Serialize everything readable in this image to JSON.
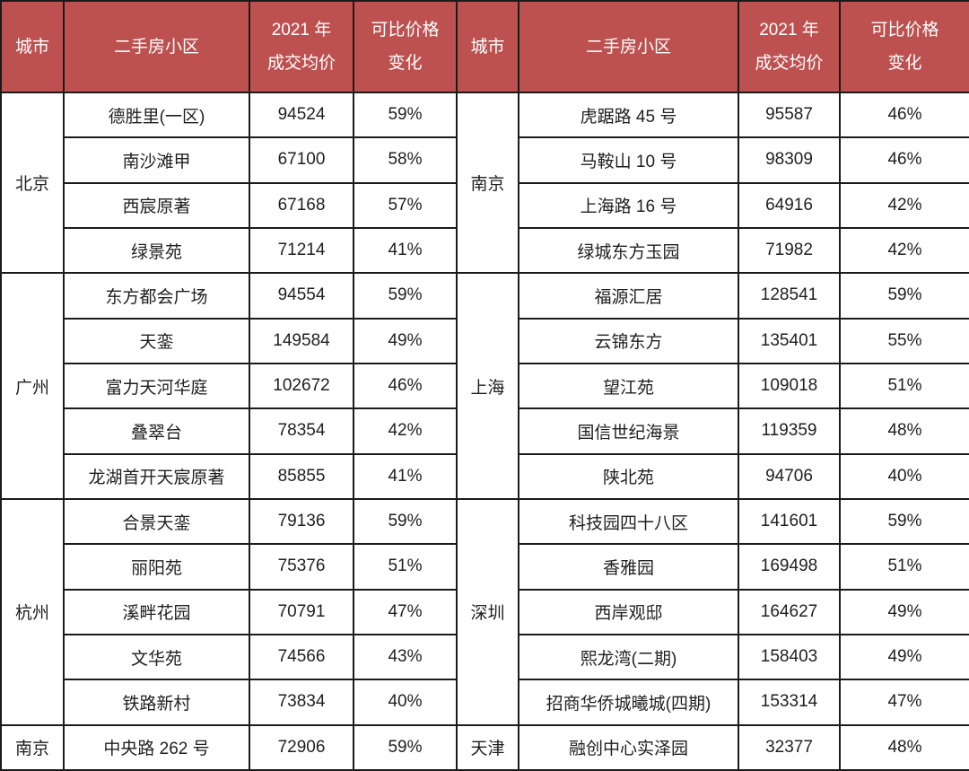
{
  "colors": {
    "header_bg": "#bd5150",
    "header_text": "#ffffff",
    "body_text": "#1f1f1f",
    "border": "#1b1b1b",
    "row_bg": "#ffffff"
  },
  "header": {
    "city": "城市",
    "community": "二手房小区",
    "price_line1": "2021 年",
    "price_line2": "成交均价",
    "change_line1": "可比价格",
    "change_line2": "变化"
  },
  "left_groups": [
    {
      "city": "北京",
      "rows": [
        {
          "community": "德胜里(一区)",
          "price": "94524",
          "change": "59%"
        },
        {
          "community": "南沙滩甲",
          "price": "67100",
          "change": "58%"
        },
        {
          "community": "西宸原著",
          "price": "67168",
          "change": "57%"
        },
        {
          "community": "绿景苑",
          "price": "71214",
          "change": "41%"
        }
      ]
    },
    {
      "city": "广州",
      "rows": [
        {
          "community": "东方都会广场",
          "price": "94554",
          "change": "59%"
        },
        {
          "community": "天銮",
          "price": "149584",
          "change": "49%"
        },
        {
          "community": "富力天河华庭",
          "price": "102672",
          "change": "46%"
        },
        {
          "community": "叠翠台",
          "price": "78354",
          "change": "42%"
        },
        {
          "community": "龙湖首开天宸原著",
          "price": "85855",
          "change": "41%"
        }
      ]
    },
    {
      "city": "杭州",
      "rows": [
        {
          "community": "合景天銮",
          "price": "79136",
          "change": "59%"
        },
        {
          "community": "丽阳苑",
          "price": "75376",
          "change": "51%"
        },
        {
          "community": "溪畔花园",
          "price": "70791",
          "change": "47%"
        },
        {
          "community": "文华苑",
          "price": "74566",
          "change": "43%"
        },
        {
          "community": "铁路新村",
          "price": "73834",
          "change": "40%"
        }
      ]
    },
    {
      "city": "南京",
      "rows": [
        {
          "community": "中央路 262 号",
          "price": "72906",
          "change": "59%"
        }
      ]
    }
  ],
  "right_groups": [
    {
      "city": "南京",
      "rows": [
        {
          "community": "虎踞路 45 号",
          "price": "95587",
          "change": "46%"
        },
        {
          "community": "马鞍山 10 号",
          "price": "98309",
          "change": "46%"
        },
        {
          "community": "上海路 16 号",
          "price": "64916",
          "change": "42%"
        },
        {
          "community": "绿城东方玉园",
          "price": "71982",
          "change": "42%"
        }
      ]
    },
    {
      "city": "上海",
      "rows": [
        {
          "community": "福源汇居",
          "price": "128541",
          "change": "59%"
        },
        {
          "community": "云锦东方",
          "price": "135401",
          "change": "55%"
        },
        {
          "community": "望江苑",
          "price": "109018",
          "change": "51%"
        },
        {
          "community": "国信世纪海景",
          "price": "119359",
          "change": "48%"
        },
        {
          "community": "陕北苑",
          "price": "94706",
          "change": "40%"
        }
      ]
    },
    {
      "city": "深圳",
      "rows": [
        {
          "community": "科技园四十八区",
          "price": "141601",
          "change": "59%"
        },
        {
          "community": "香雅园",
          "price": "169498",
          "change": "51%"
        },
        {
          "community": "西岸观邸",
          "price": "164627",
          "change": "49%"
        },
        {
          "community": "熙龙湾(二期)",
          "price": "158403",
          "change": "49%"
        },
        {
          "community": "招商华侨城曦城(四期)",
          "price": "153314",
          "change": "47%"
        }
      ]
    },
    {
      "city": "天津",
      "rows": [
        {
          "community": "融创中心实泽园",
          "price": "32377",
          "change": "48%"
        }
      ]
    }
  ]
}
